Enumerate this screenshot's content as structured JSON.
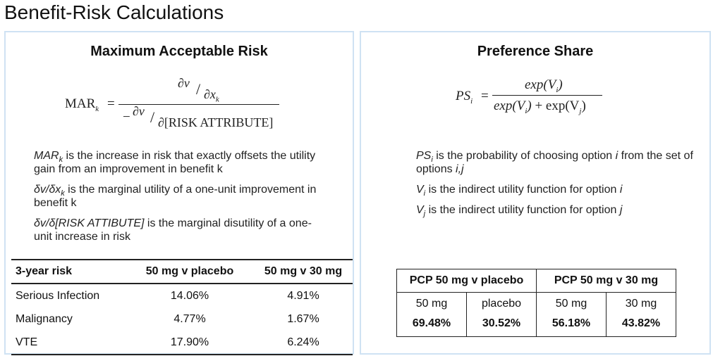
{
  "page": {
    "title": "Benefit-Risk Calculations"
  },
  "mar": {
    "title": "Maximum Acceptable Risk",
    "formula": {
      "lhs": "MAR",
      "lhs_sub": "k",
      "equals": "=",
      "num_top": "∂v",
      "num_bottom": "∂x",
      "num_bottom_sub": "k",
      "den_minus": "−",
      "den_top": "∂v",
      "den_bottom": "∂[RISK ATTRIBUTE]"
    },
    "defs": [
      {
        "term": "MAR",
        "sub": "k",
        "text": " is the increase in risk that exactly offsets the utility gain from an improvement in benefit k"
      },
      {
        "term": "δv/δx",
        "sub": "k",
        "text": " is the marginal utility of a one-unit improvement in benefit k"
      },
      {
        "term": "δv/δ[RISK ATTIBUTE]",
        "sub": "",
        "text": " is the marginal disutility of a one-unit increase in risk"
      }
    ],
    "table": {
      "headers": [
        "3-year risk",
        "50 mg v placebo",
        "50 mg v 30 mg"
      ],
      "rows": [
        [
          "Serious Infection",
          "14.06%",
          "4.91%"
        ],
        [
          "Malignancy",
          "4.77%",
          "1.67%"
        ],
        [
          "VTE",
          "17.90%",
          "6.24%"
        ]
      ]
    }
  },
  "ps": {
    "title": "Preference Share",
    "formula": {
      "lhs": "PS",
      "lhs_sub": "i",
      "equals": "=",
      "num": "exp(V",
      "num_sub": "i",
      "num_close": ")",
      "den_a": "exp(V",
      "den_a_sub": "i",
      "den_a_close": ")",
      "den_plus": " + exp(V",
      "den_b_sub": "j",
      "den_b_close": ")"
    },
    "defs": [
      {
        "term": "PS",
        "sub": "i",
        "text": " is the probability of choosing option ",
        "em": "i",
        "text2": " from the set of options ",
        "em2": "i,j"
      },
      {
        "term": "V",
        "sub": "i",
        "text": " is the indirect utility function for option ",
        "em": "i",
        "text2": "",
        "em2": ""
      },
      {
        "term": "V",
        "sub": "j",
        "text": " is the indirect utility function for option ",
        "em": "j",
        "text2": "",
        "em2": ""
      }
    ],
    "table": {
      "groups": [
        "PCP 50 mg v placebo",
        "PCP 50 mg v 30 mg"
      ],
      "options": [
        "50 mg",
        "placebo",
        "50 mg",
        "30 mg"
      ],
      "shares": [
        "69.48%",
        "30.52%",
        "56.18%",
        "43.82%"
      ]
    }
  }
}
